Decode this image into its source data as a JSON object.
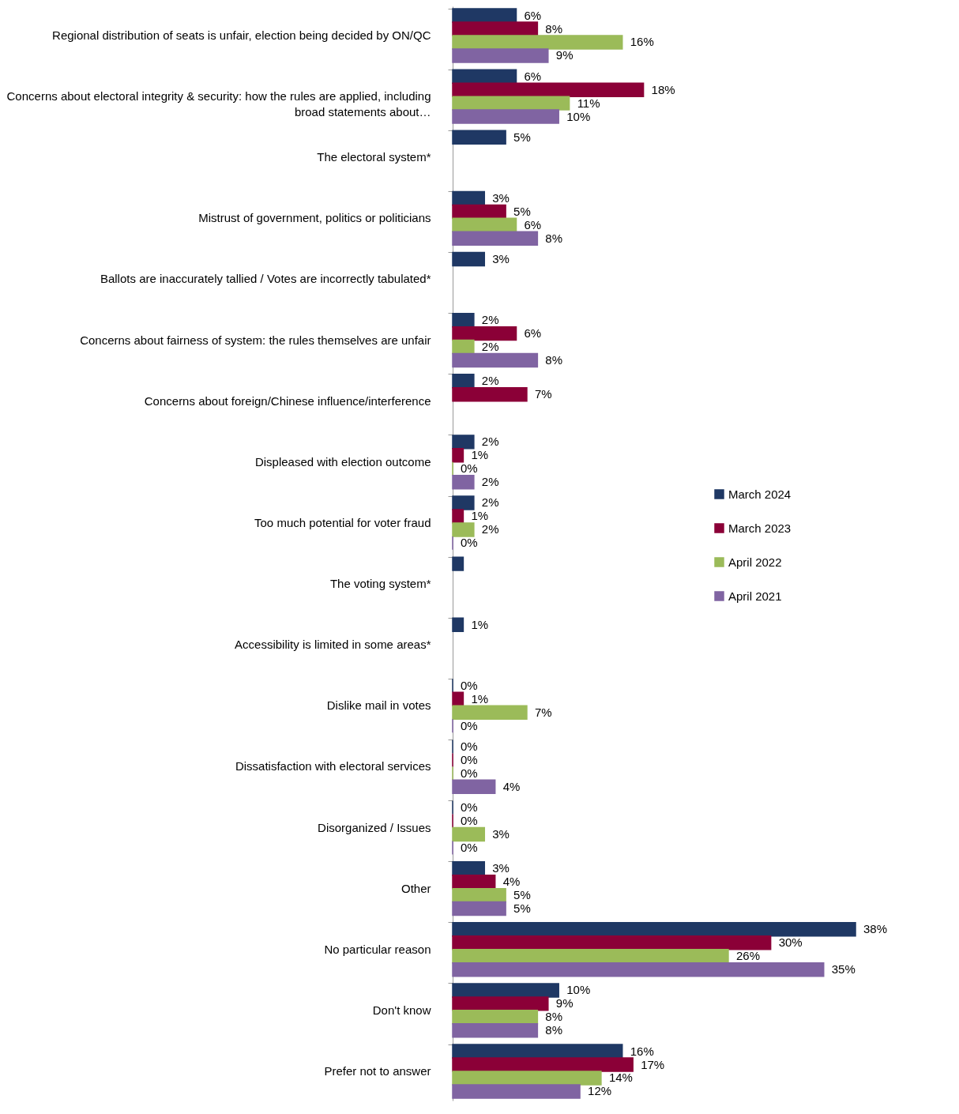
{
  "chart_data": {
    "type": "bar",
    "orientation": "horizontal",
    "legend": "right",
    "categories": [
      "Regional distribution of seats is unfair, election being decided by ON/QC",
      "Concerns about electoral integrity & security: how the rules are applied, including broad statements about…",
      "The electoral system*",
      "Mistrust of government, politics or politicians",
      "Ballots are inaccurately tallied / Votes are incorrectly tabulated*",
      "Concerns about fairness of system: the rules themselves are unfair",
      "Concerns about foreign/Chinese influence/interference",
      "Displeased with election outcome",
      "Too much potential for voter fraud",
      "The voting system*",
      "Accessibility is limited in some areas*",
      "Dislike mail in votes",
      "Dissatisfaction with electoral services",
      "Disorganized / Issues",
      "Other",
      "No particular reason",
      "Don't know",
      "Prefer not to answer"
    ],
    "series": [
      {
        "name": "March 2024",
        "color": "#1f3864",
        "values": [
          6,
          6,
          5,
          3,
          3,
          2,
          2,
          2,
          2,
          1,
          1,
          0,
          0,
          0,
          3,
          38,
          10,
          16
        ],
        "value_labels": [
          "6%",
          "6%",
          "5%",
          "3%",
          "3%",
          "2%",
          "2%",
          "2%",
          "2%",
          null,
          "1%",
          "0%",
          "0%",
          "0%",
          "3%",
          "38%",
          "10%",
          "16%"
        ]
      },
      {
        "name": "March 2023",
        "color": "#8b0037",
        "values": [
          8,
          18,
          null,
          5,
          null,
          6,
          7,
          1,
          1,
          null,
          null,
          1,
          0,
          0,
          4,
          30,
          9,
          17
        ],
        "value_labels": [
          "8%",
          "18%",
          null,
          "5%",
          null,
          "6%",
          "7%",
          "1%",
          "1%",
          null,
          null,
          "1%",
          "0%",
          "0%",
          "4%",
          "30%",
          "9%",
          "17%"
        ]
      },
      {
        "name": "April 2022",
        "color": "#9bbb59",
        "values": [
          16,
          11,
          null,
          6,
          null,
          2,
          null,
          0,
          2,
          null,
          null,
          7,
          0,
          3,
          5,
          26,
          8,
          14
        ],
        "value_labels": [
          "16%",
          "11%",
          null,
          "6%",
          null,
          "2%",
          null,
          "0%",
          "2%",
          null,
          null,
          "7%",
          "0%",
          "3%",
          "5%",
          "26%",
          "8%",
          "14%"
        ]
      },
      {
        "name": "April 2021",
        "color": "#8064a2",
        "values": [
          9,
          10,
          null,
          8,
          null,
          8,
          null,
          2,
          0,
          null,
          null,
          0,
          4,
          0,
          5,
          35,
          8,
          12
        ],
        "value_labels": [
          "9%",
          "10%",
          null,
          "8%",
          null,
          "8%",
          null,
          "2%",
          "0%",
          null,
          null,
          "0%",
          "4%",
          "0%",
          "5%",
          "35%",
          "8%",
          "12%"
        ]
      }
    ]
  }
}
